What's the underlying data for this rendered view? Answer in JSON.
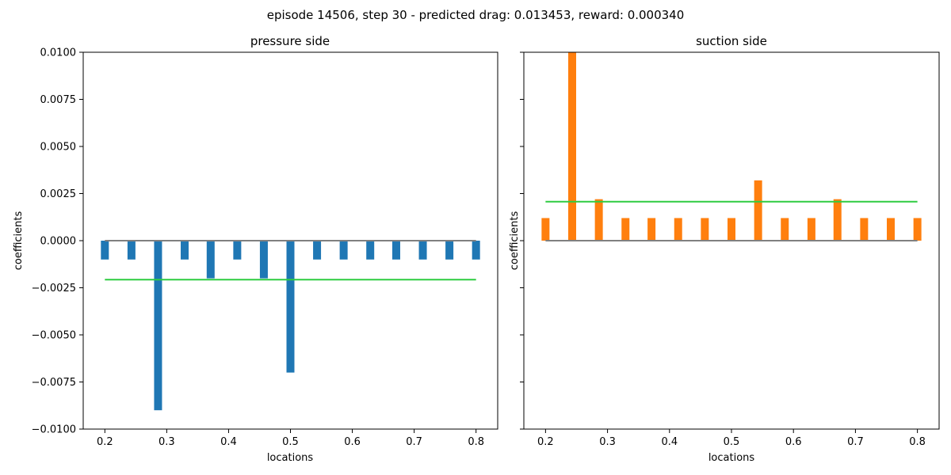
{
  "figure": {
    "suptitle": "episode 14506, step 30 - predicted drag: 0.013453, reward: 0.000340"
  },
  "colors": {
    "pressure_bars": "#1f77b4",
    "suction_bars": "#ff7f0e",
    "mean_line": "#2ecc40",
    "zero_line": "#808080"
  },
  "chart_data": [
    {
      "type": "bar",
      "title": "pressure side",
      "xlabel": "locations",
      "ylabel": "coefficients",
      "xlim": [
        0.165,
        0.835
      ],
      "ylim": [
        -0.01,
        0.01
      ],
      "xticks": [
        "0.2",
        "0.3",
        "0.4",
        "0.5",
        "0.6",
        "0.7",
        "0.8"
      ],
      "yticks": [
        "0.0100",
        "0.0075",
        "0.0050",
        "0.0025",
        "0.0000",
        "−0.0025",
        "−0.0050",
        "−0.0075",
        "−0.0100"
      ],
      "x": [
        0.2,
        0.243,
        0.286,
        0.329,
        0.371,
        0.414,
        0.457,
        0.5,
        0.543,
        0.586,
        0.629,
        0.671,
        0.714,
        0.757,
        0.8
      ],
      "values": [
        -0.001,
        -0.001,
        -0.009,
        -0.001,
        -0.002,
        -0.001,
        -0.002,
        -0.007,
        -0.001,
        -0.001,
        -0.001,
        -0.001,
        -0.001,
        -0.001,
        -0.001
      ],
      "mean_line": -0.00207,
      "zero_line": 0.0
    },
    {
      "type": "bar",
      "title": "suction side",
      "xlabel": "locations",
      "ylabel": "coefficients",
      "xlim": [
        0.165,
        0.835
      ],
      "ylim": [
        -0.01,
        0.01
      ],
      "xticks": [
        "0.2",
        "0.3",
        "0.4",
        "0.5",
        "0.6",
        "0.7",
        "0.8"
      ],
      "x": [
        0.2,
        0.243,
        0.286,
        0.329,
        0.371,
        0.414,
        0.457,
        0.5,
        0.543,
        0.586,
        0.629,
        0.671,
        0.714,
        0.757,
        0.8
      ],
      "values": [
        0.0012,
        0.0103,
        0.0022,
        0.0012,
        0.0012,
        0.0012,
        0.0012,
        0.0012,
        0.0032,
        0.0012,
        0.0012,
        0.0022,
        0.0012,
        0.0012,
        0.0012
      ],
      "mean_line": 0.00207,
      "zero_line": 0.0
    }
  ]
}
